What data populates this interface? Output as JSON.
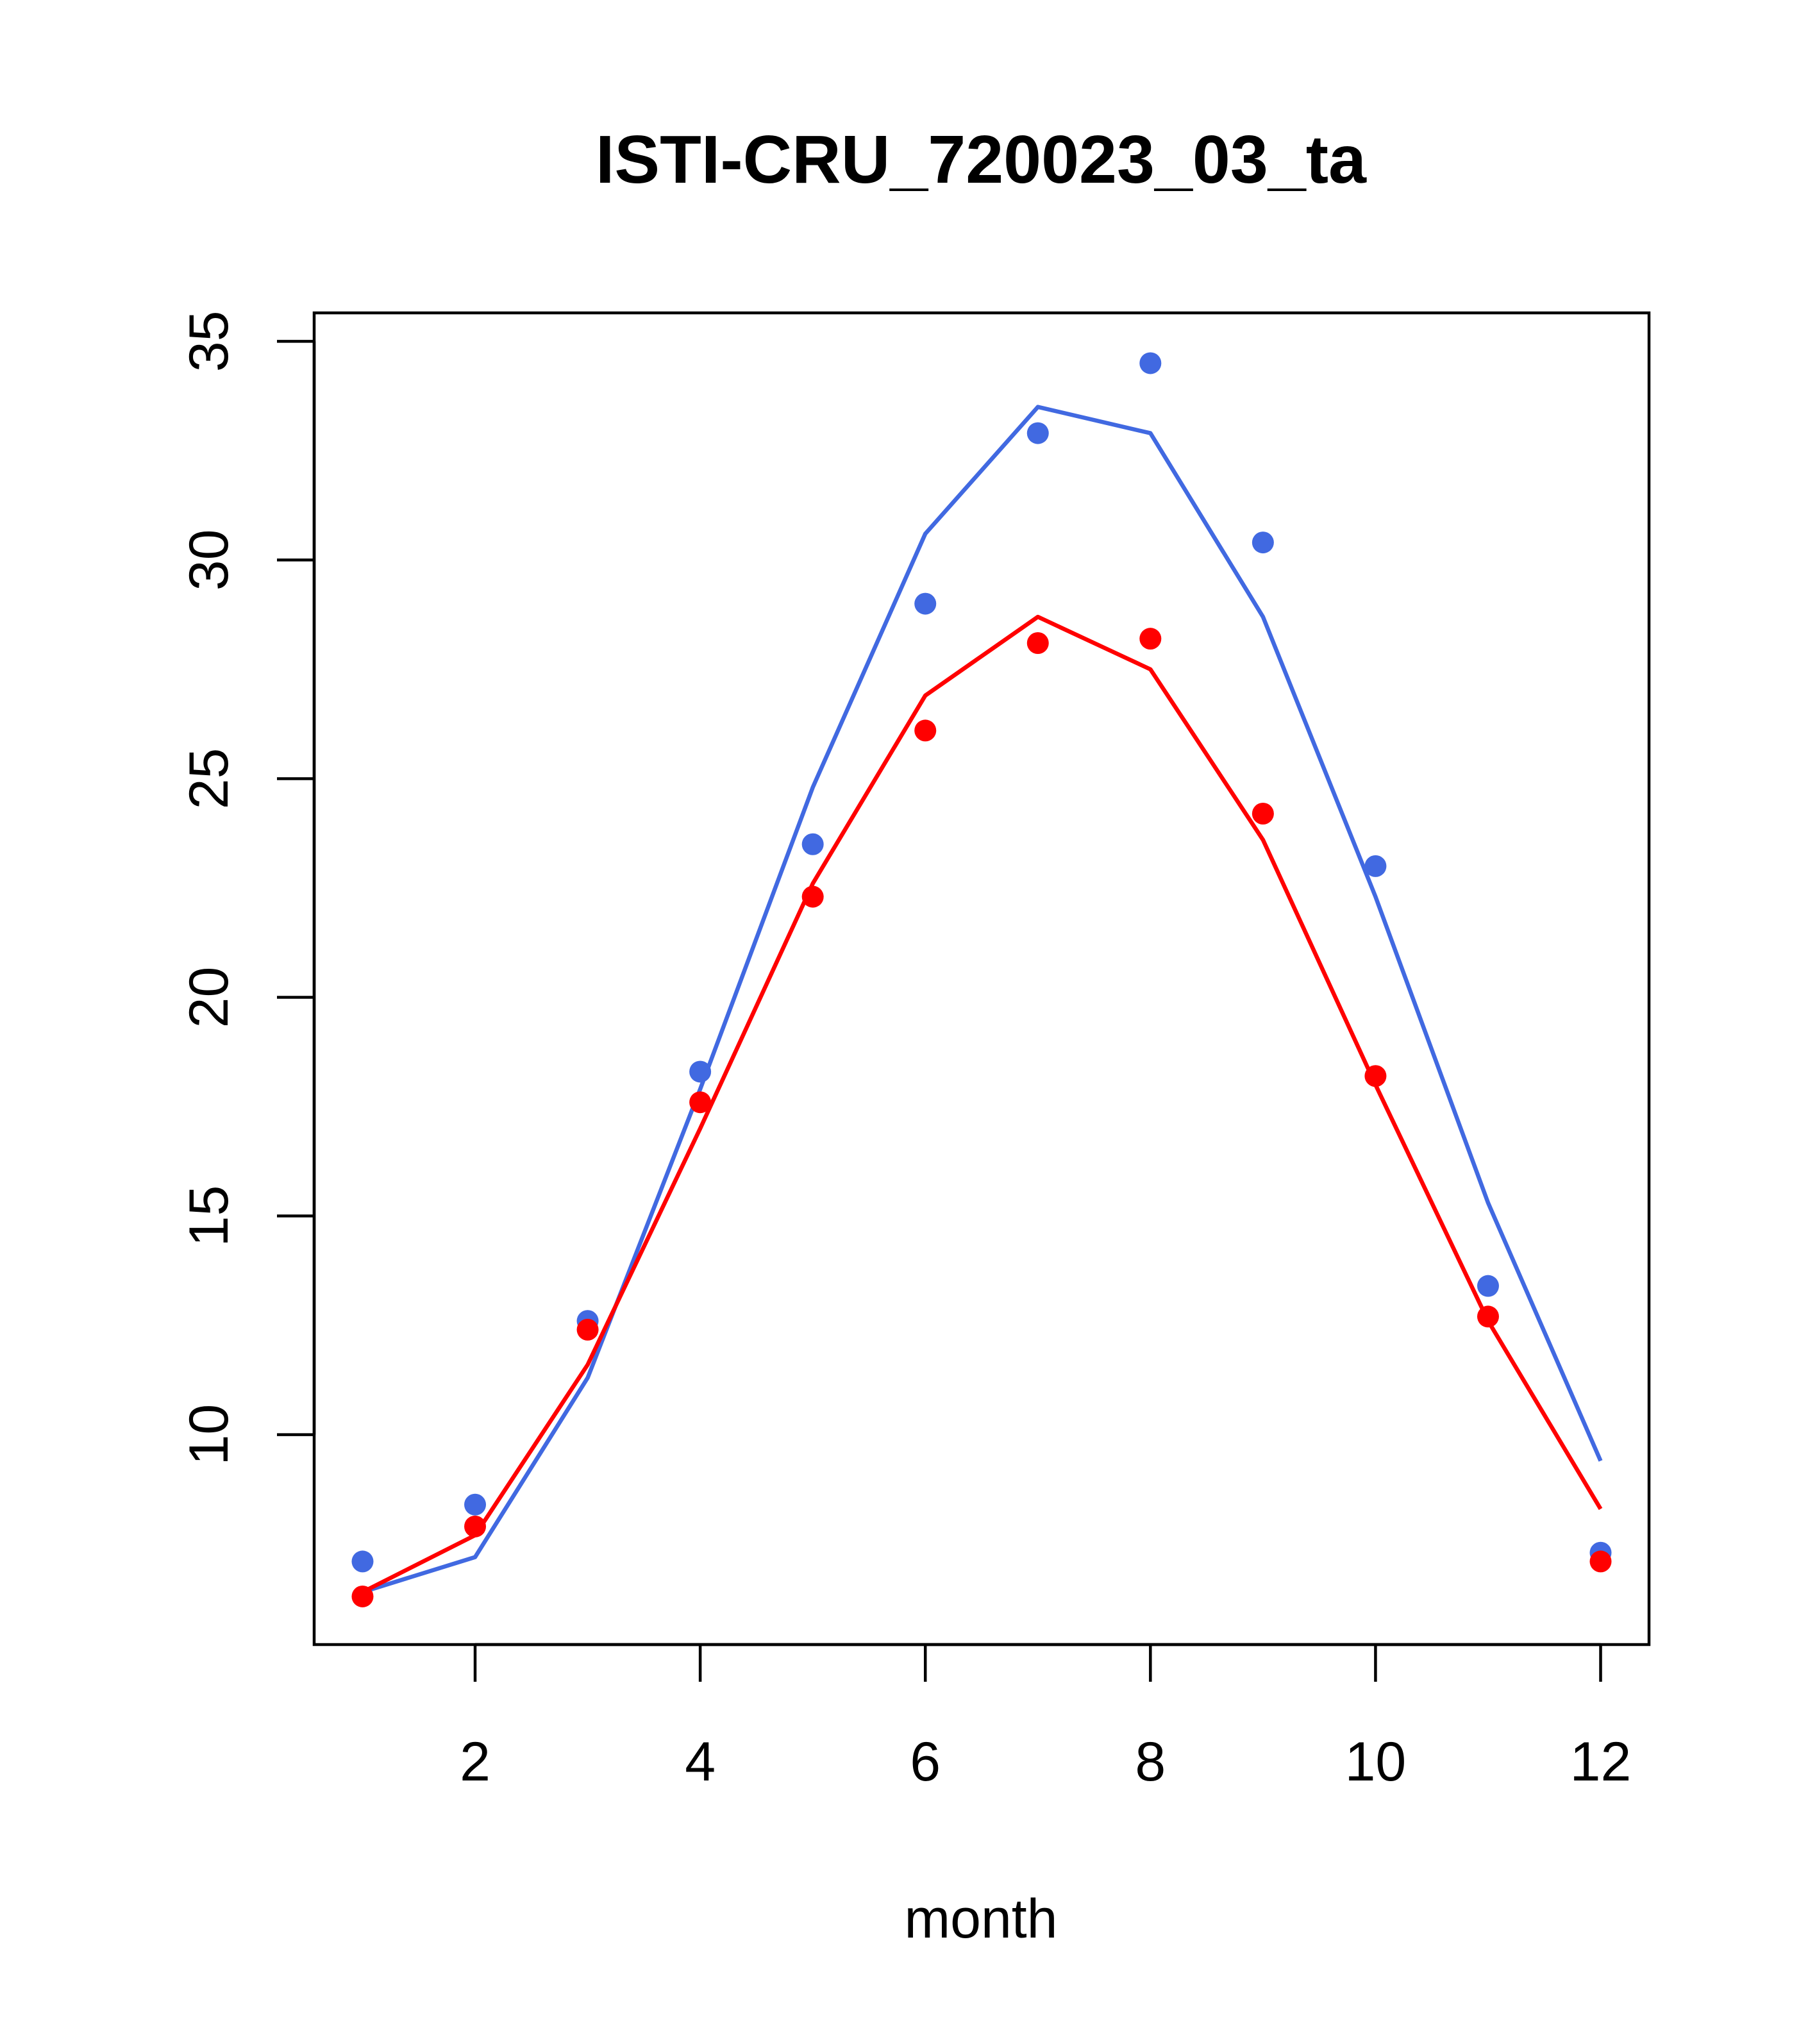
{
  "chart_data": {
    "type": "line",
    "title": "ISTI-CRU_720023_03_ta",
    "xlabel": "month",
    "ylabel": "",
    "xlim": [
      0.57,
      12.43
    ],
    "ylim": [
      5.2,
      35.65
    ],
    "x_ticks": [
      2,
      4,
      6,
      8,
      10,
      12
    ],
    "y_ticks": [
      10,
      15,
      20,
      25,
      30,
      35
    ],
    "x_tick_labels": [
      "2",
      "4",
      "6",
      "8",
      "10",
      "12"
    ],
    "y_tick_labels": [
      "10",
      "15",
      "20",
      "25",
      "30",
      "35"
    ],
    "grid": false,
    "legend": "none",
    "x": [
      1,
      2,
      3,
      4,
      5,
      6,
      7,
      8,
      9,
      10,
      11,
      12
    ],
    "series": [
      {
        "color": "#4169E1",
        "points": [
          7.1,
          8.4,
          12.6,
          18.3,
          23.5,
          29.0,
          32.9,
          34.5,
          30.4,
          23.0,
          13.4,
          7.3
        ],
        "fit": [
          6.4,
          7.2,
          11.3,
          17.9,
          24.8,
          30.6,
          33.5,
          32.9,
          28.7,
          22.3,
          15.3,
          9.4
        ]
      },
      {
        "color": "#FF0000",
        "points": [
          6.3,
          7.9,
          12.4,
          17.6,
          22.3,
          26.1,
          28.1,
          28.2,
          24.2,
          18.2,
          12.7,
          7.1
        ],
        "fit": [
          6.4,
          7.7,
          11.6,
          17.0,
          22.6,
          26.9,
          28.7,
          27.5,
          23.6,
          18.0,
          12.6,
          8.3
        ]
      }
    ]
  }
}
